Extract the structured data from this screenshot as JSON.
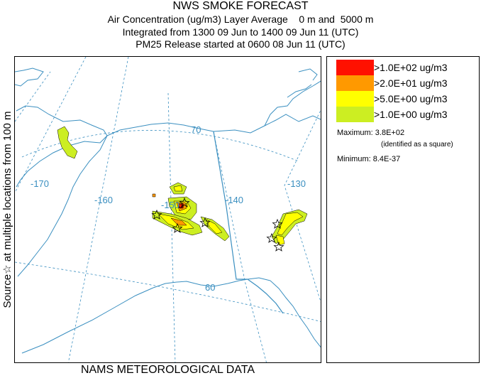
{
  "header": {
    "title": "NWS SMOKE FORECAST",
    "line2": "Air Concentration (ug/m3) Layer Average    0 m and  5000 m",
    "line3": "Integrated from 1300 09 Jun to 1400 09 Jun 11 (UTC)",
    "line4": "PM25 Release started at 0600 08 Jun 11 (UTC)"
  },
  "side_label": "Source☆ at multiple locations from 100 m",
  "footer": "NAMS METEOROLOGICAL DATA",
  "map": {
    "longitude_labels": [
      "-170",
      "-160",
      "-150",
      "-140",
      "-130"
    ],
    "latitude_labels": [
      "70",
      "60"
    ],
    "colors": {
      "grid": "#3a8fc0",
      "coast": "#3a8fc0",
      "border": "#3a8fc0"
    },
    "plume_colors": [
      "#ff2200",
      "#ff9900",
      "#ffff00",
      "#ccee22"
    ]
  },
  "legend": {
    "entries": [
      {
        "label": ">1.0E+02 ug/m3",
        "color": "#ff1100"
      },
      {
        "label": ">2.0E+01 ug/m3",
        "color": "#ff9900"
      },
      {
        "label": ">5.0E+00 ug/m3",
        "color": "#ffff00"
      },
      {
        "label": ">1.0E+00 ug/m3",
        "color": "#ccee22"
      }
    ],
    "maximum": "Maximum: 3.8E+02",
    "maximum_note": "(identified as a square)",
    "minimum": "Minimum: 8.4E-37"
  }
}
